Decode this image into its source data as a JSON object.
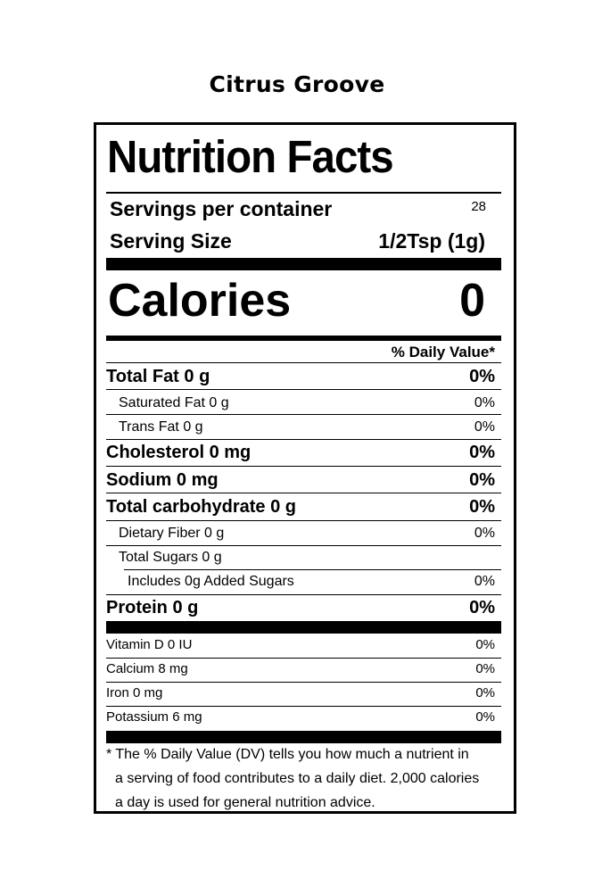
{
  "brand": "Citrus Groove",
  "label": {
    "title": "Nutrition Facts",
    "servings_label": "Servings per container",
    "servings_value": "28",
    "serving_size_label": "Serving Size",
    "serving_size_value": "1/2Tsp (1g)",
    "calories_label": "Calories",
    "calories_value": "0",
    "dv_header": "% Daily Value*",
    "nutrients": [
      {
        "name": "Total Fat 0 g",
        "dv": "0%"
      },
      {
        "name": "Saturated Fat 0 g",
        "dv": "0%"
      },
      {
        "name": "Trans Fat 0 g",
        "dv": "0%"
      },
      {
        "name": "Cholesterol 0 mg",
        "dv": "0%"
      },
      {
        "name": "Sodium 0 mg",
        "dv": "0%"
      },
      {
        "name": "Total carbohydrate 0 g",
        "dv": "0%"
      },
      {
        "name": "Dietary Fiber 0 g",
        "dv": "0%"
      },
      {
        "name": "Total Sugars 0 g",
        "dv": ""
      },
      {
        "name": "Includes 0g Added Sugars",
        "dv": "0%"
      },
      {
        "name": "Protein 0 g",
        "dv": "0%"
      }
    ],
    "vitamins": [
      {
        "name": "Vitamin D 0 IU",
        "dv": "0%"
      },
      {
        "name": "Calcium 8 mg",
        "dv": "0%"
      },
      {
        "name": "Iron 0 mg",
        "dv": "0%"
      },
      {
        "name": "Potassium 6 mg",
        "dv": "0%"
      }
    ],
    "footnote": [
      "* The % Daily Value (DV) tells you how much a nutrient in",
      "a serving of food contributes to a daily diet. 2,000 calories",
      "a day is used for general nutrition advice."
    ]
  }
}
